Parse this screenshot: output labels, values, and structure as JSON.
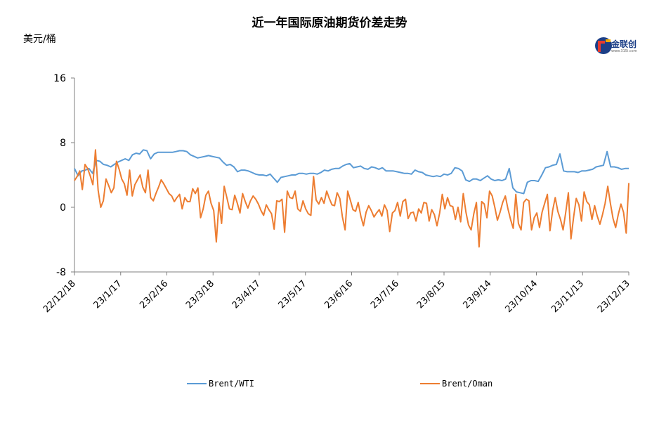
{
  "title": "近一年国际原油期货价差走势",
  "unit_label": "美元/桶",
  "logo": {
    "text": "金联创",
    "sub": "www.315i.com"
  },
  "colors": {
    "brent_wti": "#5b9bd5",
    "brent_oman": "#ed7d31"
  },
  "chart_data": {
    "type": "line",
    "title": "近一年国际原油期货价差走势",
    "ylabel": "美元/桶",
    "ylim": [
      -8,
      16
    ],
    "yticks": [
      -8,
      0,
      8,
      16
    ],
    "ytick_labels": [
      "-8",
      "0",
      "8",
      "16"
    ],
    "x_ticks": [
      "22/12/18",
      "23/1/17",
      "23/2/16",
      "23/3/18",
      "23/4/17",
      "23/5/17",
      "23/6/16",
      "23/7/16",
      "23/8/15",
      "23/9/14",
      "23/10/14",
      "23/11/13",
      "23/12/13"
    ],
    "legend_position": "bottom",
    "series": [
      {
        "name": "Brent/WTI",
        "color": "#5b9bd5",
        "values": [
          4.8,
          3.9,
          4.5,
          4.6,
          4.8,
          4.2,
          5.8,
          5.7,
          5.3,
          5.2,
          5.0,
          5.3,
          5.6,
          5.8,
          6.0,
          5.8,
          6.5,
          6.7,
          6.6,
          7.1,
          7.0,
          6.0,
          6.6,
          6.8,
          6.8,
          6.8,
          6.8,
          6.8,
          6.9,
          7.0,
          7.0,
          6.9,
          6.5,
          6.3,
          6.1,
          6.2,
          6.3,
          6.4,
          6.3,
          6.2,
          6.1,
          5.6,
          5.2,
          5.3,
          5.0,
          4.4,
          4.6,
          4.6,
          4.5,
          4.3,
          4.1,
          4.0,
          4.0,
          3.9,
          4.1,
          3.6,
          3.1,
          3.7,
          3.8,
          3.9,
          4.0,
          4.0,
          4.2,
          4.2,
          4.1,
          4.2,
          4.2,
          4.1,
          4.3,
          4.6,
          4.5,
          4.7,
          4.8,
          4.8,
          5.1,
          5.3,
          5.4,
          4.9,
          5.0,
          5.1,
          4.8,
          4.7,
          5.0,
          4.9,
          4.7,
          4.9,
          4.5,
          4.5,
          4.5,
          4.4,
          4.3,
          4.2,
          4.2,
          4.1,
          4.6,
          4.4,
          4.3,
          4.0,
          3.9,
          3.8,
          3.9,
          3.8,
          4.1,
          4.0,
          4.2,
          4.9,
          4.8,
          4.5,
          3.4,
          3.2,
          3.5,
          3.5,
          3.3,
          3.6,
          3.9,
          3.5,
          3.3,
          3.4,
          3.3,
          3.5,
          4.8,
          2.4,
          1.9,
          1.8,
          1.7,
          3.1,
          3.3,
          3.3,
          3.2,
          4.0,
          4.9,
          5.0,
          5.2,
          5.3,
          6.6,
          4.5,
          4.4,
          4.4,
          4.4,
          4.3,
          4.5,
          4.5,
          4.6,
          4.7,
          5.0,
          5.1,
          5.2,
          6.9,
          5.0,
          5.0,
          4.9,
          4.7,
          4.8,
          4.8
        ]
      },
      {
        "name": "Brent/Oman",
        "color": "#ed7d31",
        "values": [
          3.3,
          3.8,
          4.5,
          2.2,
          5.3,
          4.8,
          3.9,
          2.8,
          7.1,
          2.1,
          0.0,
          0.8,
          3.5,
          2.7,
          1.8,
          2.4,
          5.7,
          4.7,
          3.5,
          2.9,
          1.5,
          4.6,
          1.4,
          2.8,
          3.4,
          4.0,
          2.5,
          1.8,
          4.6,
          1.2,
          0.8,
          1.7,
          2.5,
          3.4,
          2.9,
          2.3,
          1.7,
          1.4,
          0.7,
          1.2,
          1.6,
          -0.2,
          1.2,
          0.7,
          0.7,
          2.3,
          1.7,
          2.4,
          -1.3,
          -0.2,
          1.5,
          2.0,
          0.5,
          -0.4,
          -4.3,
          0.6,
          -2.0,
          2.6,
          1.2,
          -0.2,
          -0.3,
          1.5,
          0.5,
          -0.7,
          1.7,
          0.7,
          -0.1,
          0.8,
          1.4,
          1.0,
          0.4,
          -0.4,
          -1.0,
          0.3,
          -0.3,
          -0.8,
          -2.7,
          0.8,
          0.7,
          1.0,
          -3.1,
          2.0,
          1.2,
          1.1,
          2.0,
          -0.2,
          -0.5,
          0.8,
          -0.2,
          -0.8,
          -1.0,
          3.8,
          0.9,
          0.4,
          1.2,
          0.5,
          2.0,
          1.1,
          0.3,
          0.2,
          1.8,
          1.1,
          -1.2,
          -2.8,
          2.0,
          0.9,
          -0.3,
          -0.5,
          0.6,
          -1.1,
          -2.3,
          -0.6,
          0.2,
          -0.4,
          -1.2,
          -0.7,
          -0.3,
          -1.1,
          0.3,
          -0.4,
          -3.0,
          -0.7,
          -0.4,
          0.6,
          -1.1,
          0.7,
          1.0,
          -1.4,
          -0.7,
          -0.6,
          -1.7,
          -0.2,
          -0.7,
          0.6,
          0.5,
          -1.7,
          -0.3,
          -0.9,
          -2.3,
          -0.7,
          1.6,
          -0.2,
          1.2,
          0.2,
          0.1,
          -1.5,
          0.0,
          -1.8,
          1.7,
          -0.6,
          -2.2,
          -2.8,
          -0.8,
          0.6,
          -4.9,
          0.7,
          0.4,
          -1.3,
          2.0,
          1.4,
          0.0,
          -1.6,
          -0.6,
          0.6,
          1.4,
          -0.2,
          -1.5,
          -2.6,
          1.6,
          -2.0,
          -2.8,
          0.6,
          1.0,
          0.8,
          -2.8,
          -1.3,
          -0.7,
          -2.5,
          -0.6,
          0.5,
          1.6,
          -2.9,
          -0.4,
          1.2,
          -0.5,
          -1.5,
          -2.8,
          -0.6,
          1.8,
          -3.9,
          -1.2,
          1.1,
          0.3,
          -1.7,
          1.9,
          0.7,
          0.3,
          -1.5,
          0.2,
          -1.1,
          -2.1,
          -0.9,
          0.5,
          2.6,
          0.5,
          -1.4,
          -2.5,
          -0.9,
          0.4,
          -0.6,
          -3.2,
          3.0
        ]
      }
    ]
  }
}
